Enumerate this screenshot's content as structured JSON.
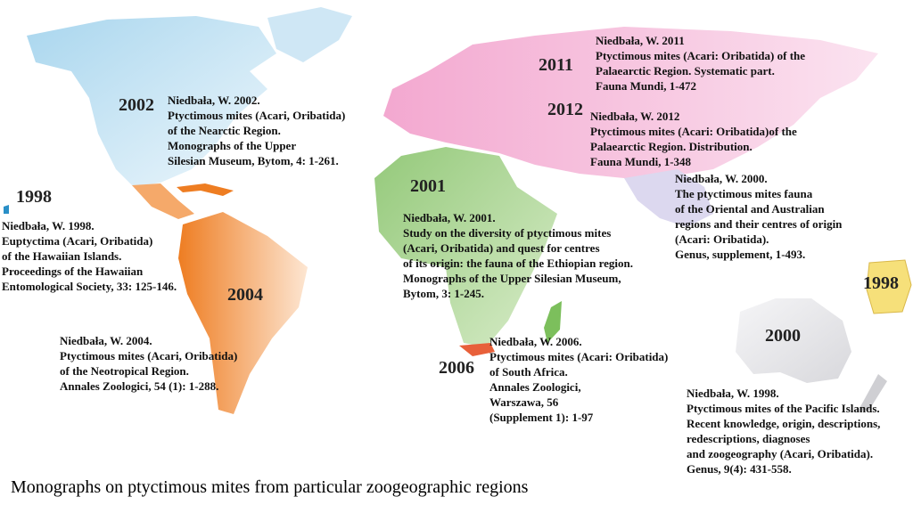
{
  "regions": [
    {
      "year": "1998",
      "reference": [
        "Niedbała, W. 1998.",
        "Euptyctima (Acari, Oribatida)",
        "of the Hawaiian Islands.",
        "Proceedings of the Hawaiian",
        "Entomological Society, 33: 125-146."
      ]
    },
    {
      "year": "2002",
      "reference": [
        "Niedbała, W. 2002.",
        "Ptyctimous mites (Acari, Oribatida)",
        "of the Nearctic Region.",
        "Monographs of the Upper",
        "Silesian Museum, Bytom, 4: 1-261."
      ]
    },
    {
      "year": "2004",
      "reference": [
        "Niedbała, W. 2004.",
        "Ptyctimous mites (Acari, Oribatida)",
        "of the Neotropical Region.",
        "Annales Zoologici, 54 (1): 1-288."
      ]
    },
    {
      "year": "2001",
      "reference": [
        "Niedbała, W. 2001.",
        "Study on the diversity of ptyctimous mites",
        "(Acari, Oribatida) and quest for centres",
        "of its origin: the fauna of the Ethiopian region.",
        "Monographs of the Upper Silesian Museum,",
        "Bytom, 3: 1-245."
      ]
    },
    {
      "year": "2006",
      "reference": [
        "Niedbała, W. 2006.",
        "Ptyctimous mites (Acari: Oribatida)",
        " of South Africa.",
        "Annales Zoologici,",
        "Warszawa, 56",
        "(Supplement 1): 1-97"
      ]
    },
    {
      "year": "2011",
      "reference": [
        "Niedbała, W. 2011",
        "Ptyctimous mites (Acari: Oribatida) of the",
        "Palaearctic Region. Systematic part.",
        "Fauna Mundi, 1-472"
      ]
    },
    {
      "year": "2012",
      "reference": [
        "Niedbała, W. 2012",
        "Ptyctimous mites (Acari: Oribatida)of the",
        "Palaearctic Region. Distribution.",
        "Fauna Mundi, 1-348"
      ]
    },
    {
      "year": "2000",
      "reference": [
        "Niedbała, W. 2000.",
        "The ptyctimous mites fauna",
        "of the Oriental and Australian",
        "regions and their centres of origin",
        "(Acari: Oribatida).",
        "Genus, supplement, 1-493."
      ]
    },
    {
      "year": "1998",
      "reference": [
        "Niedbała, W. 1998.",
        "Ptyctimous mites of the Pacific Islands.",
        "Recent knowledge, origin, descriptions,",
        "redescriptions, diagnoses",
        "and zoogeography (Acari, Oribatida).",
        "Genus, 9(4): 431-558."
      ]
    }
  ],
  "caption": "Monographs on ptyctimous mites from particular zoogeographic regions"
}
